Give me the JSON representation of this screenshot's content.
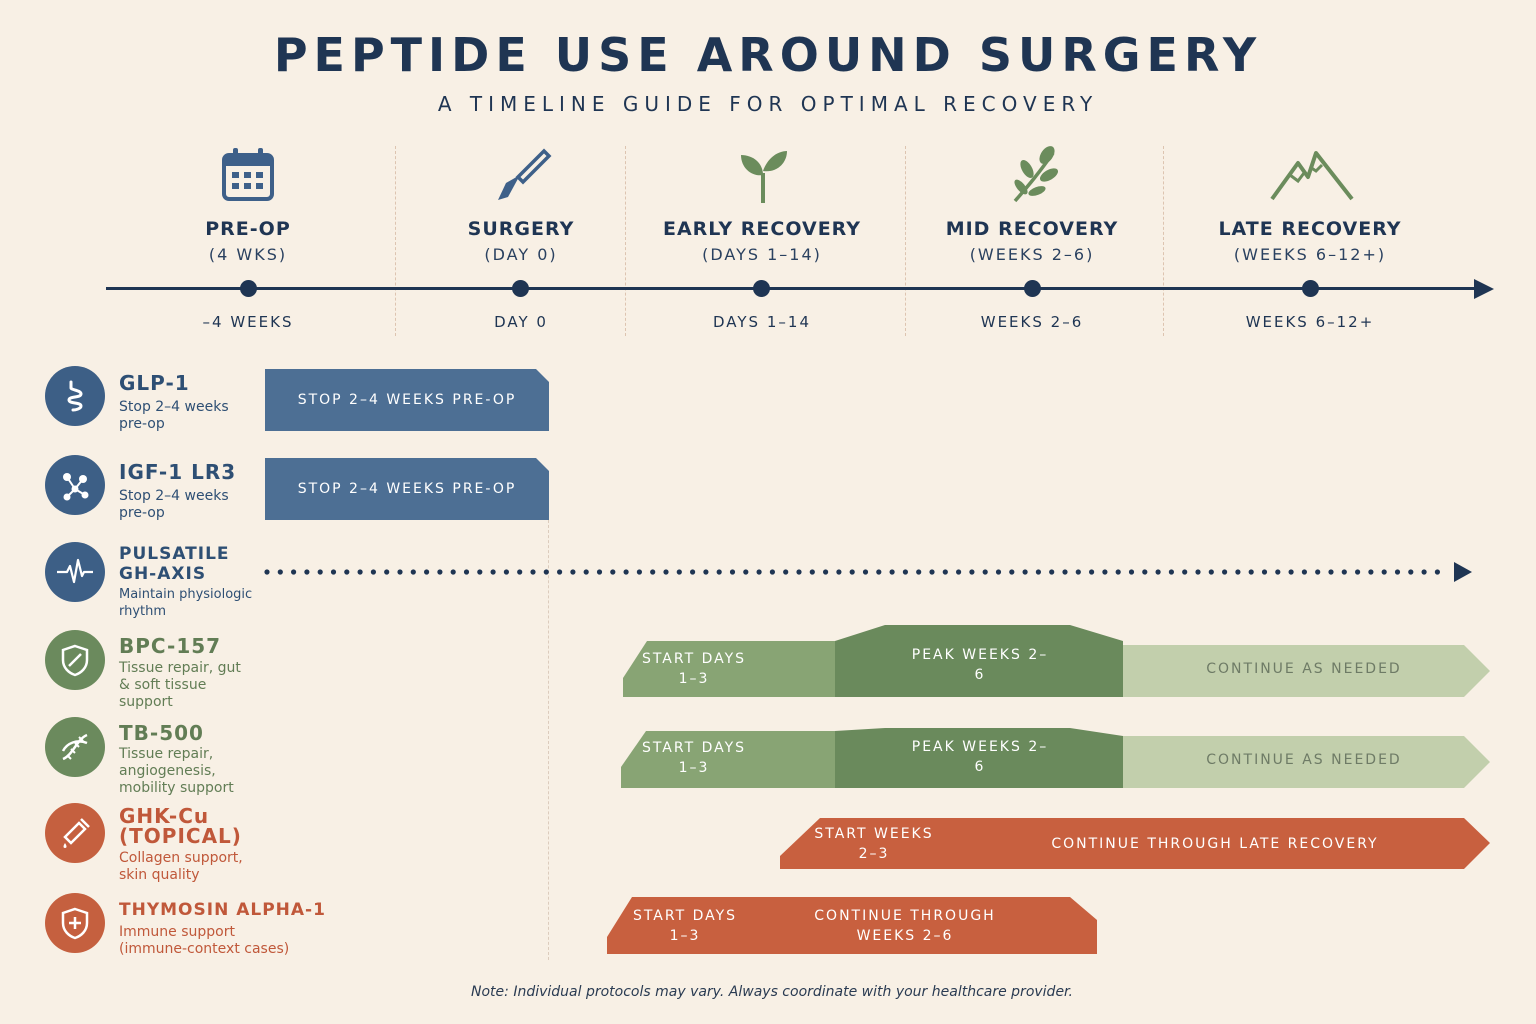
{
  "header": {
    "title": "PEPTIDE USE AROUND SURGERY",
    "subtitle": "A TIMELINE GUIDE FOR OPTIMAL RECOVERY"
  },
  "phases": [
    {
      "name": "PRE-OP",
      "range": "(4 WKS)",
      "tick": "–4 WEEKS",
      "icon": "calendar-icon"
    },
    {
      "name": "SURGERY",
      "range": "(DAY 0)",
      "tick": "DAY 0",
      "icon": "scalpel-icon"
    },
    {
      "name": "EARLY RECOVERY",
      "range": "(DAYS 1–14)",
      "tick": "DAYS 1–14",
      "icon": "sprout-icon"
    },
    {
      "name": "MID RECOVERY",
      "range": "(WEEKS 2–6)",
      "tick": "WEEKS 2–6",
      "icon": "branch-icon"
    },
    {
      "name": "LATE RECOVERY",
      "range": "(WEEKS 6–12+)",
      "tick": "WEEKS 6–12+",
      "icon": "mountain-icon"
    }
  ],
  "peptides": [
    {
      "name": "GLP-1",
      "desc": "Stop 2–4 weeks pre-op",
      "icon": "intestine-icon",
      "bars": [
        {
          "text": "STOP 2–4 WEEKS PRE-OP"
        }
      ]
    },
    {
      "name": "IGF-1 LR3",
      "desc": "Stop 2–4 weeks pre-op",
      "icon": "molecule-icon",
      "bars": [
        {
          "text": "STOP 2–4 WEEKS PRE-OP"
        }
      ]
    },
    {
      "name": "PULSATILE GH-AXIS",
      "desc": "Maintain physiologic rhythm",
      "icon": "pulse-icon",
      "bars": []
    },
    {
      "name": "BPC-157",
      "desc": "Tissue repair, gut & soft tissue support",
      "icon": "shield-slash-icon",
      "bars": [
        {
          "text": "START DAYS 1–3"
        },
        {
          "text": "PEAK WEEKS 2–6"
        },
        {
          "text": "CONTINUE AS NEEDED"
        }
      ]
    },
    {
      "name": "TB-500",
      "desc": "Tissue repair, angiogenesis, mobility support",
      "icon": "dna-icon",
      "bars": [
        {
          "text": "START DAYS 1–3"
        },
        {
          "text": "PEAK WEEKS 2–6"
        },
        {
          "text": "CONTINUE AS NEEDED"
        }
      ]
    },
    {
      "name": "GHK-Cu (TOPICAL)",
      "desc": "Collagen support, skin quality",
      "icon": "dropper-icon",
      "bars": [
        {
          "text": "START WEEKS 2–3"
        },
        {
          "text": "CONTINUE THROUGH LATE RECOVERY"
        }
      ]
    },
    {
      "name": "THYMOSIN ALPHA-1",
      "desc": "Immune support (immune-context cases)",
      "icon": "shield-plus-icon",
      "bars": [
        {
          "text": "START DAYS 1–3"
        },
        {
          "text": "CONTINUE THROUGH WEEKS 2–6"
        }
      ]
    }
  ],
  "colors": {
    "navy": "#1f3553",
    "blue_bar": "#4d6f94",
    "green_light": "#88a474",
    "green_dark": "#6a8a5c",
    "green_pale": "#c2cfac",
    "orange": "#c8603f"
  },
  "note": "Note: Individual protocols may vary. Always coordinate with your healthcare provider."
}
